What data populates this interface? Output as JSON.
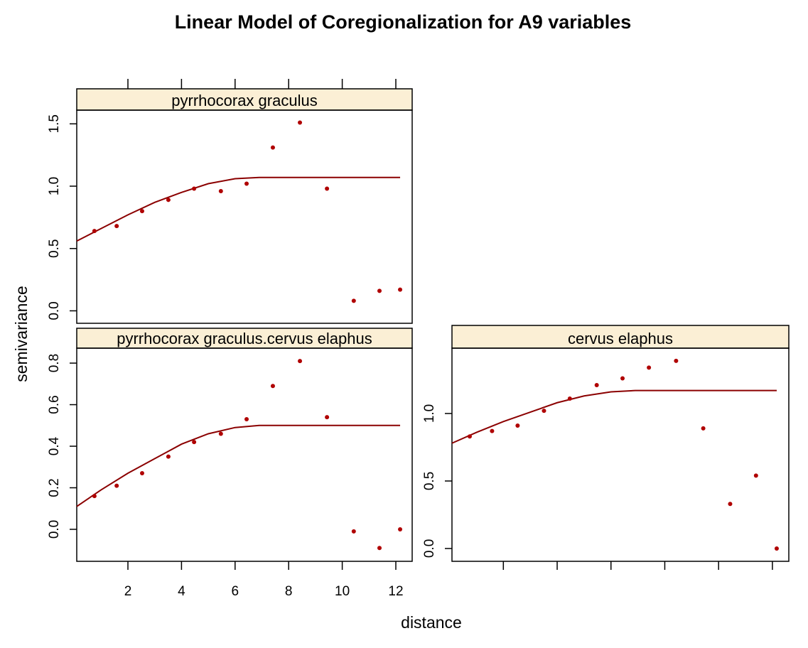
{
  "chart_data": {
    "type": "scatter",
    "title": "Linear Model of Coregionalization for A9 variables",
    "xlabel": "distance",
    "ylabel": "semivariance",
    "xlim": [
      0.09,
      12.61
    ],
    "xticks": [
      2,
      4,
      6,
      8,
      10,
      12
    ],
    "strip_color": "#fbefd5",
    "point_color": "#b00000",
    "line_color": "#8b0000",
    "panels": [
      {
        "name": "pyrrhocorax graculus",
        "ylim": [
          -0.1,
          1.61
        ],
        "yticks": [
          {
            "value": 0,
            "label": "0.0"
          },
          0.5,
          {
            "value": 1,
            "label": "1.0"
          },
          1.5
        ],
        "xtick_side": "top",
        "xtick_labels": false,
        "x": [
          0.75,
          1.58,
          2.53,
          3.51,
          4.47,
          5.47,
          6.43,
          7.41,
          8.42,
          9.43,
          10.43,
          11.39,
          12.16
        ],
        "values": [
          0.64,
          0.68,
          0.8,
          0.89,
          0.98,
          0.96,
          1.02,
          1.31,
          1.51,
          0.98,
          0.08,
          0.16,
          0.17
        ],
        "fit": {
          "x": [
            0.09,
            1,
            2,
            3,
            4,
            5,
            6,
            6.9,
            12.16
          ],
          "values": [
            0.56,
            0.66,
            0.77,
            0.87,
            0.95,
            1.02,
            1.06,
            1.07,
            1.07
          ]
        }
      },
      {
        "name": "pyrrhocorax graculus.cervus elaphus",
        "ylim": [
          -0.154,
          0.872
        ],
        "yticks": [
          {
            "value": 0,
            "label": "0.0"
          },
          0.2,
          0.4,
          0.6,
          0.8
        ],
        "xtick_side": "bottom",
        "xtick_labels": true,
        "x": [
          0.75,
          1.58,
          2.53,
          3.51,
          4.47,
          5.47,
          6.43,
          7.41,
          8.42,
          9.43,
          10.43,
          11.39,
          12.16
        ],
        "values": [
          0.16,
          0.21,
          0.27,
          0.35,
          0.42,
          0.46,
          0.53,
          0.69,
          0.81,
          0.54,
          -0.01,
          -0.09,
          0.0
        ],
        "fit": {
          "x": [
            0.09,
            1,
            2,
            3,
            4,
            5,
            6,
            6.9,
            12.16
          ],
          "values": [
            0.11,
            0.19,
            0.27,
            0.34,
            0.41,
            0.46,
            0.49,
            0.5,
            0.5
          ]
        }
      },
      {
        "name": "cervus elaphus",
        "ylim": [
          -0.095,
          1.484
        ],
        "yticks": [
          {
            "value": 0,
            "label": "0.0"
          },
          0.5,
          {
            "value": 1,
            "label": "1.0"
          }
        ],
        "xtick_side": "bottom",
        "xtick_labels": false,
        "x": [
          0.75,
          1.58,
          2.53,
          3.51,
          4.47,
          5.47,
          6.43,
          7.41,
          8.42,
          9.43,
          10.43,
          11.39,
          12.16
        ],
        "values": [
          0.83,
          0.87,
          0.91,
          1.02,
          1.11,
          1.21,
          1.26,
          1.34,
          1.39,
          0.89,
          0.33,
          0.54,
          0.0
        ],
        "fit": {
          "x": [
            0.09,
            1,
            2,
            3,
            4,
            5,
            6,
            6.9,
            12.16
          ],
          "values": [
            0.78,
            0.86,
            0.94,
            1.01,
            1.08,
            1.13,
            1.16,
            1.17,
            1.17
          ]
        }
      }
    ]
  }
}
